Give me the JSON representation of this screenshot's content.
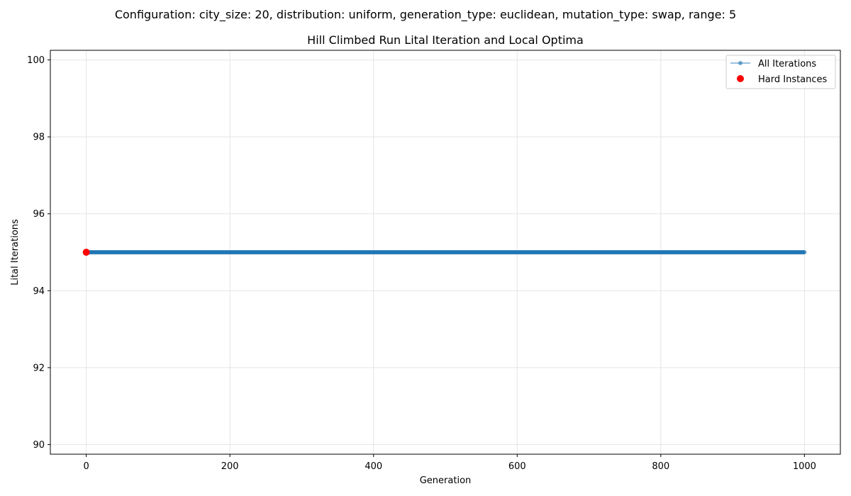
{
  "figure": {
    "suptitle": "Configuration: city_size: 20, distribution: uniform, generation_type: euclidean, mutation_type: swap, range: 5"
  },
  "colors": {
    "all_iterations": "#1f77b4",
    "hard_instances": "#ff0000",
    "grid": "#e5e5e5",
    "axis": "#000000"
  },
  "chart_data": {
    "type": "line",
    "title": "Hill Climbed Run Lital Iteration and Local Optima",
    "xlabel": "Generation",
    "ylabel": "Lital Iterations",
    "xlim": [
      -50,
      1050
    ],
    "ylim": [
      89.75,
      100.25
    ],
    "xticks": [
      0,
      200,
      400,
      600,
      800,
      1000
    ],
    "yticks": [
      90,
      92,
      94,
      96,
      98,
      100
    ],
    "grid": true,
    "legend_position": "top-right",
    "series": [
      {
        "name": "All Iterations",
        "style": "line-with-markers",
        "x_start": 0,
        "x_end": 1000,
        "x_step": 1,
        "y_constant": 95
      },
      {
        "name": "Hard Instances",
        "style": "scatter",
        "points": [
          [
            0,
            95
          ]
        ]
      }
    ]
  }
}
